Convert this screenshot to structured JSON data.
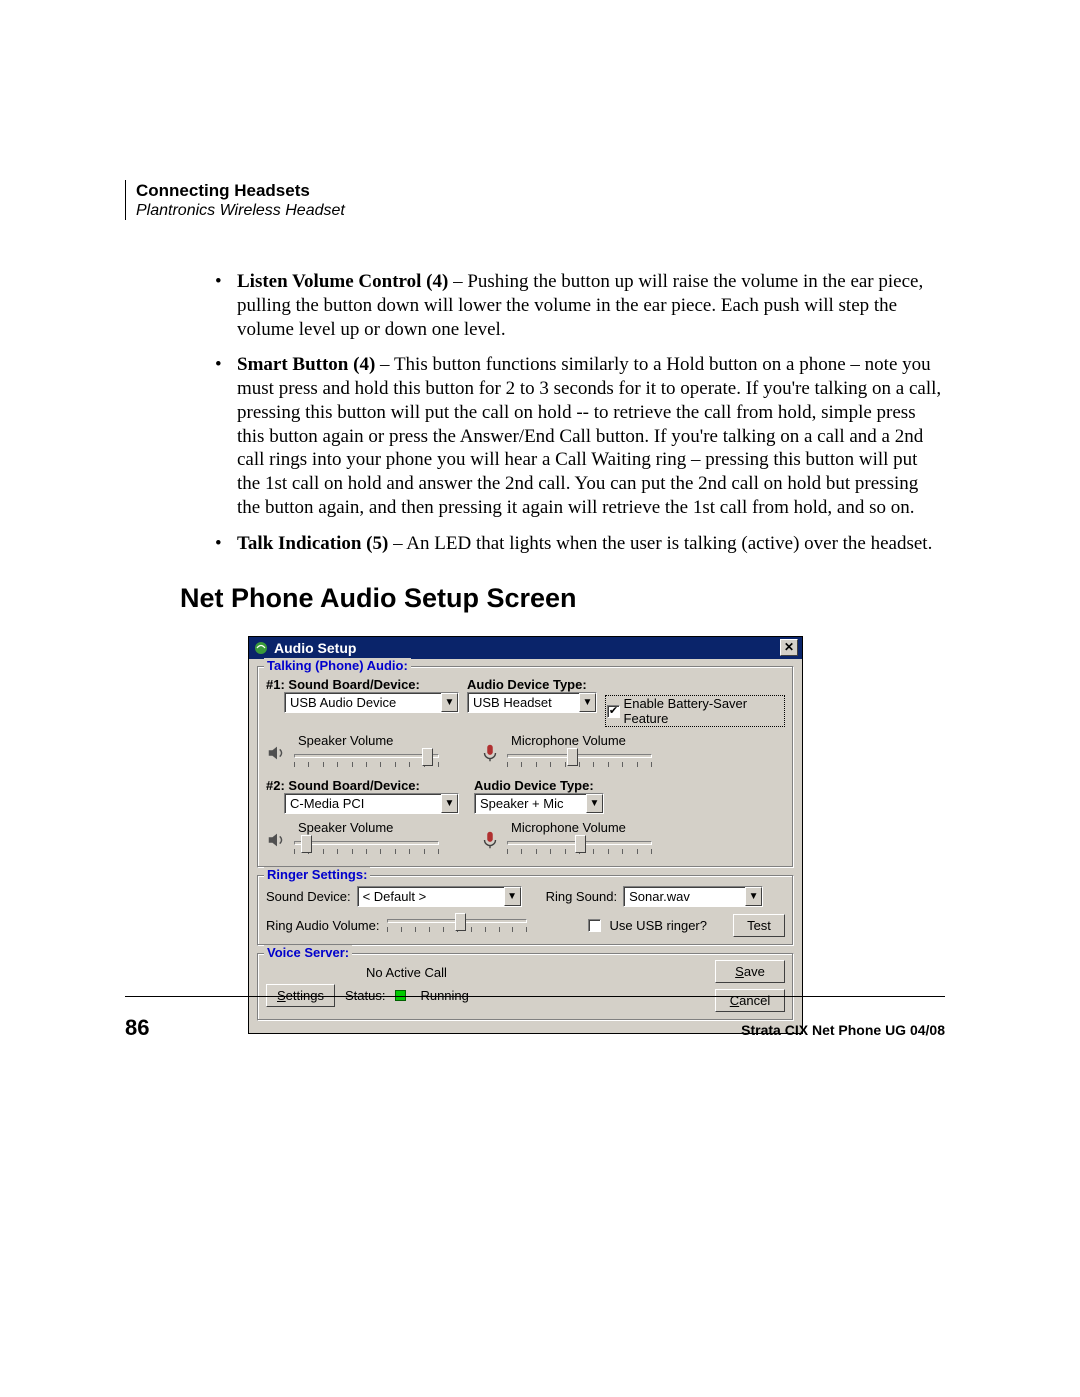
{
  "header": {
    "title": "Connecting Headsets",
    "subtitle": "Plantronics Wireless Headset"
  },
  "bullets": [
    {
      "lead": "Listen Volume Control (4)",
      "rest": " – Pushing the button up will raise the volume in the ear piece, pulling the button down will lower the volume in the ear piece.  Each push will step the volume level up or down one level."
    },
    {
      "lead": "Smart Button (4)",
      "rest": " – This button functions similarly to a Hold button on a phone – note you must press and hold this button for 2 to 3 seconds for it to operate.   If you're talking on a call, pressing this button will put the call on hold -- to retrieve the call from hold, simple press this button again or press the Answer/End Call button.   If you're talking on a call and a 2nd call rings into your phone you will hear a Call Waiting ring – pressing this button will put the 1st call on hold and answer the 2nd call.   You can put the 2nd call on hold but pressing the button again, and then pressing it again will retrieve the 1st call from hold, and so on."
    },
    {
      "lead": "Talk Indication (5)",
      "rest": " – An LED that lights when the user is talking (active) over the headset."
    }
  ],
  "h2": "Net Phone Audio Setup Screen",
  "dialog": {
    "title": "Audio Setup",
    "group1": {
      "legend": "Talking (Phone) Audio:",
      "dev1_label": "#1:  Sound Board/Device:",
      "dev1_value": "USB Audio Device",
      "type_label": "Audio Device Type:",
      "type1_value": "USB Headset",
      "battery_label": "Enable Battery-Saver Feature",
      "spk_label": "Speaker  Volume",
      "mic_label": "Microphone  Volume",
      "dev2_label": "#2:  Sound Board/Device:",
      "dev2_value": "C-Media PCI",
      "type2_value": "Speaker + Mic"
    },
    "group2": {
      "legend": "Ringer Settings:",
      "snd_dev_label": "Sound Device:",
      "snd_dev_value": "< Default >",
      "ring_sound_label": "Ring Sound:",
      "ring_sound_value": "Sonar.wav",
      "ring_vol_label": "Ring Audio Volume:",
      "use_usb_label": "Use USB ringer?",
      "test_label": "Test"
    },
    "group3": {
      "legend": "Voice Server:",
      "no_active": "No Active Call",
      "settings_label": "Settings",
      "status_label": "Status:",
      "status_value": "Running",
      "save_label": "Save",
      "cancel_label": "Cancel"
    }
  },
  "footer": {
    "page": "86",
    "text": "Strata CIX Net Phone UG    04/08"
  },
  "sliders": {
    "s1_spk_pct": 92,
    "s1_mic_pct": 45,
    "s2_spk_pct": 8,
    "s2_mic_pct": 50,
    "ring_pct": 52
  }
}
